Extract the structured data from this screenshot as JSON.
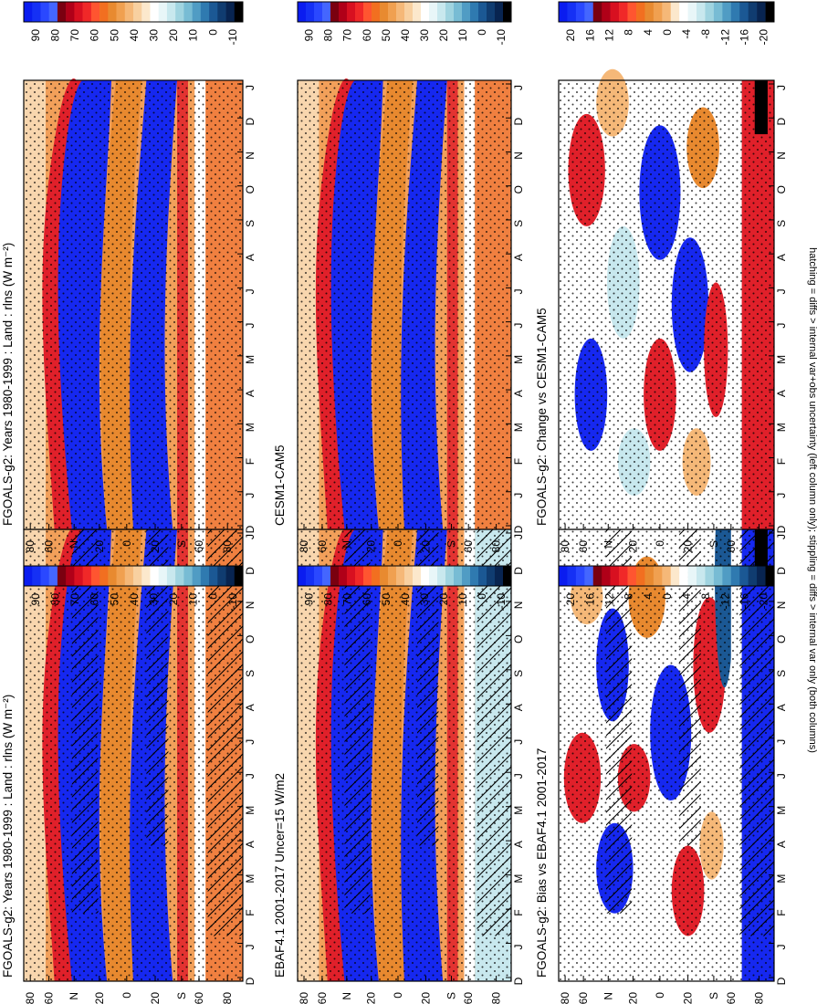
{
  "figure": {
    "caption": "hatching = diffs > internal var+obs uncertainty (left column only); stippling = diffs > internal var only (both columns)"
  },
  "colorbars": {
    "absolute": {
      "tick_labels": [
        "90",
        "80",
        "70",
        "60",
        "50",
        "40",
        "30",
        "20",
        "10",
        "0",
        "-10"
      ],
      "colors": [
        "#0a1cf0",
        "#1530f5",
        "#2a48ff",
        "#4466ff",
        "#7a0010",
        "#b00018",
        "#d81020",
        "#f02828",
        "#ff5530",
        "#f26f20",
        "#e88a30",
        "#f0a050",
        "#f5b878",
        "#f8d0a0",
        "#fce8cc",
        "#ffffff",
        "#e8f6f8",
        "#c8e8ee",
        "#a0d4e0",
        "#78bcd4",
        "#509cc4",
        "#2f7ab0",
        "#1b5894",
        "#103c70",
        "#082450",
        "#000000"
      ]
    },
    "difference": {
      "tick_labels": [
        "20",
        "16",
        "12",
        "8",
        "4",
        "0",
        "-4",
        "-8",
        "-12",
        "-16",
        "-20"
      ],
      "colors": [
        "#0a1cf0",
        "#1530f5",
        "#2a48ff",
        "#4466ff",
        "#7a0010",
        "#b00018",
        "#d81020",
        "#f02828",
        "#ff5530",
        "#f26f20",
        "#e88a30",
        "#f0a050",
        "#f5b878",
        "#fce8cc",
        "#ffffff",
        "#e8f6f8",
        "#c8e8ee",
        "#a0d4e0",
        "#78bcd4",
        "#509cc4",
        "#2f7ab0",
        "#1b5894",
        "#103c70",
        "#082450",
        "#000000"
      ]
    }
  },
  "chart_data": [
    {
      "type": "heatmap",
      "title": "FGOALS-g2: Years 1980-1999 : Land : rlns (W m⁻²)",
      "x_ticks": [
        "D",
        "J",
        "F",
        "M",
        "A",
        "M",
        "J",
        "J",
        "A",
        "S",
        "O",
        "N",
        "D",
        "J"
      ],
      "y_ticks": [
        "80",
        "60",
        "N",
        "20",
        "0",
        "20",
        "S",
        "60",
        "80"
      ],
      "colorbar": "absolute",
      "hatching": true,
      "stippling": true
    },
    {
      "type": "heatmap",
      "title": "FGOALS-g2: Years 1980-1999 : Land : rlns (W m⁻²)",
      "x_ticks": [
        "D",
        "J",
        "F",
        "M",
        "A",
        "M",
        "J",
        "J",
        "A",
        "S",
        "O",
        "N",
        "D",
        "J"
      ],
      "y_ticks": [
        "80",
        "60",
        "N",
        "20",
        "0",
        "20",
        "S",
        "60",
        "80"
      ],
      "colorbar": "absolute",
      "hatching": false,
      "stippling": true
    },
    {
      "type": "heatmap",
      "title": "EBAF4.1 2001-2017 Uncer=15 W/m2",
      "x_ticks": [
        "D",
        "J",
        "F",
        "M",
        "A",
        "M",
        "J",
        "J",
        "A",
        "S",
        "O",
        "N",
        "D",
        "J"
      ],
      "y_ticks": [
        "80",
        "60",
        "N",
        "20",
        "0",
        "20",
        "S",
        "60",
        "80"
      ],
      "colorbar": "absolute",
      "hatching": true,
      "stippling": true
    },
    {
      "type": "heatmap",
      "title": "CESM1-CAM5",
      "x_ticks": [
        "D",
        "J",
        "F",
        "M",
        "A",
        "M",
        "J",
        "J",
        "A",
        "S",
        "O",
        "N",
        "D",
        "J"
      ],
      "y_ticks": [
        "80",
        "60",
        "N",
        "20",
        "0",
        "20",
        "S",
        "60",
        "80"
      ],
      "colorbar": "absolute",
      "hatching": false,
      "stippling": true
    },
    {
      "type": "heatmap",
      "title": "FGOALS-g2: Bias vs EBAF4.1 2001-2017",
      "x_ticks": [
        "D",
        "J",
        "F",
        "M",
        "A",
        "M",
        "J",
        "J",
        "A",
        "S",
        "O",
        "N",
        "D",
        "J"
      ],
      "y_ticks": [
        "80",
        "60",
        "N",
        "20",
        "0",
        "20",
        "S",
        "60",
        "80"
      ],
      "colorbar": "difference",
      "hatching": true,
      "stippling": true
    },
    {
      "type": "heatmap",
      "title": "FGOALS-g2: Change vs CESM1-CAM5",
      "x_ticks": [
        "D",
        "J",
        "F",
        "M",
        "A",
        "M",
        "J",
        "J",
        "A",
        "S",
        "O",
        "N",
        "D",
        "J"
      ],
      "y_ticks": [
        "80",
        "60",
        "N",
        "20",
        "0",
        "20",
        "S",
        "60",
        "80"
      ],
      "colorbar": "difference",
      "hatching": false,
      "stippling": true
    }
  ]
}
